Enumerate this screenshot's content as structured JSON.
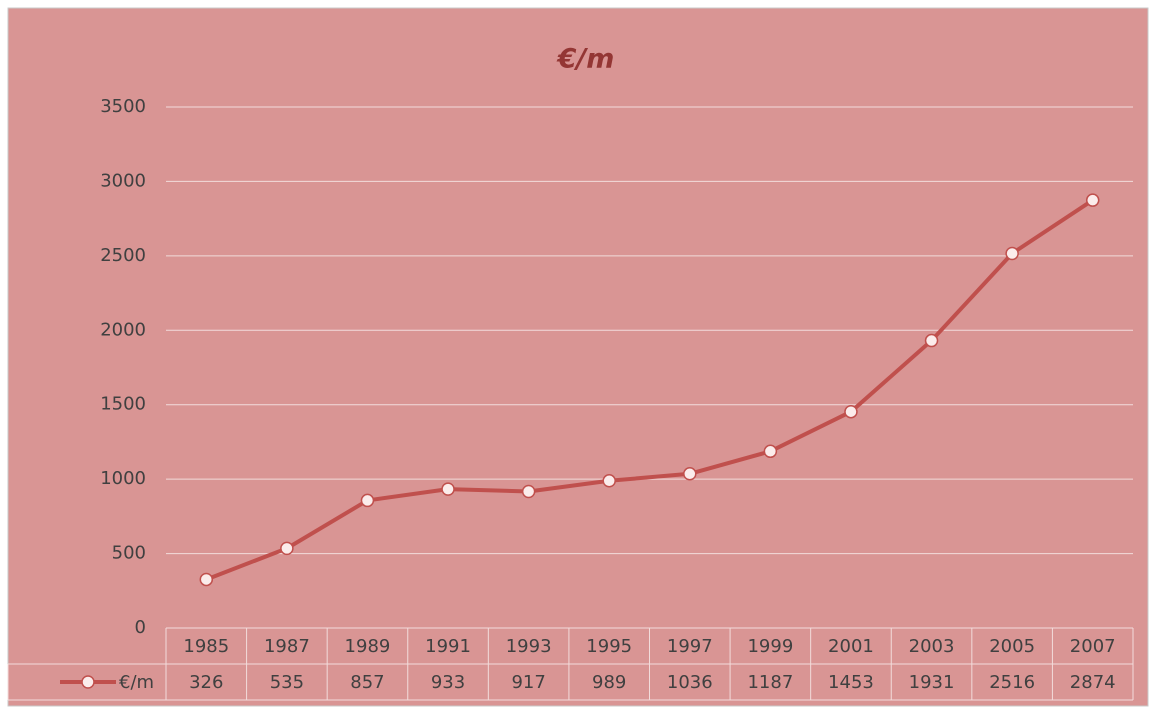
{
  "chart_data": {
    "type": "line",
    "title": "€/m",
    "categories": [
      "1985",
      "1987",
      "1989",
      "1991",
      "1993",
      "1995",
      "1997",
      "1999",
      "2001",
      "2003",
      "2005",
      "2007"
    ],
    "series": [
      {
        "name": "€/m",
        "color": "#c0504d",
        "values": [
          326,
          535,
          857,
          933,
          917,
          989,
          1036,
          1187,
          1453,
          1931,
          2516,
          2874
        ]
      }
    ],
    "ylim": [
      0,
      3500
    ],
    "yticks": [
      0,
      500,
      1000,
      1500,
      2000,
      2500,
      3000,
      3500
    ],
    "grid": true,
    "data_table": true
  }
}
